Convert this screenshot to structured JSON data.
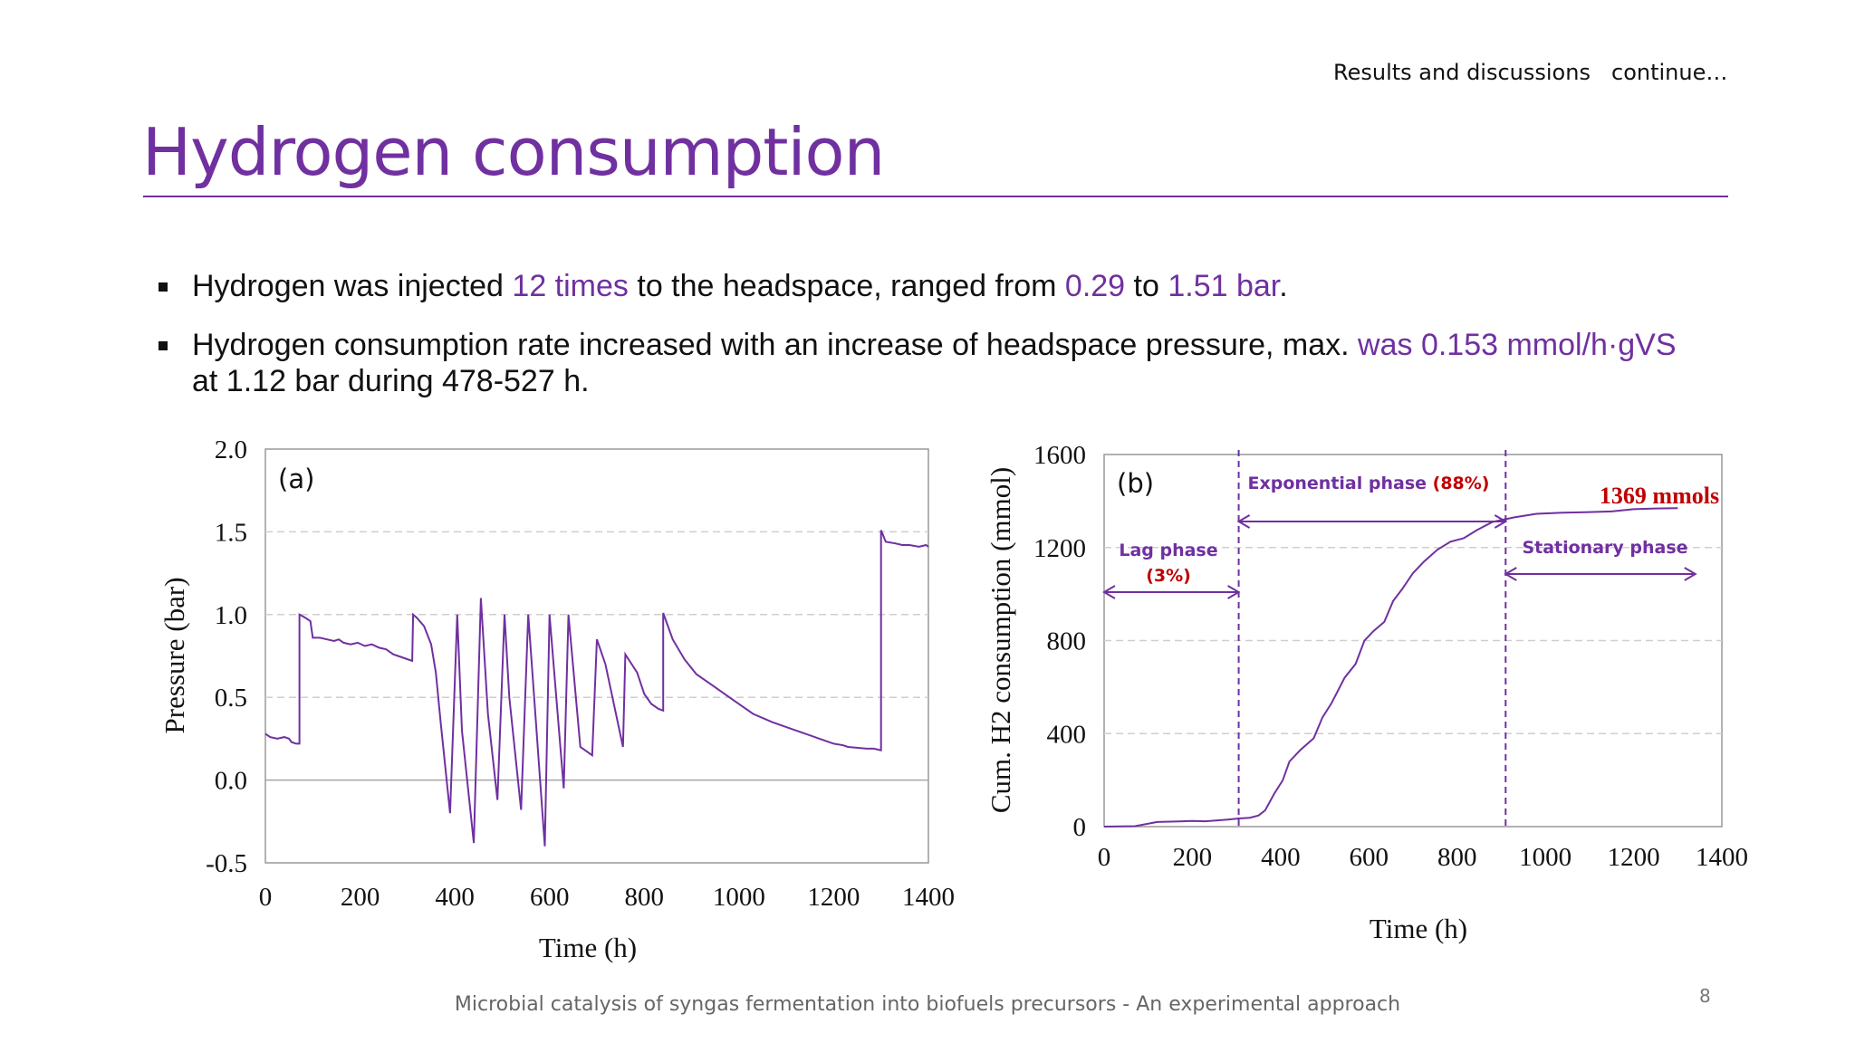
{
  "header": {
    "section": "Results and discussions",
    "continue": "continue…",
    "title": "Hydrogen consumption"
  },
  "bullets": {
    "b1": {
      "t1": "Hydrogen was injected ",
      "h1": "12 times",
      "t2": " to the headspace, ranged from ",
      "h2": "0.29",
      "t3": " to ",
      "h3": "1.51 bar",
      "t4": "."
    },
    "b2": {
      "t1": "Hydrogen consumption rate increased with an increase of headspace pressure, max. ",
      "h1": "was 0.153 mmol/h·gVS",
      "t2": " at 1.12 bar during 478-527 h."
    }
  },
  "footer": {
    "text": "Microbial catalysis of syngas fermentation into biofuels precursors - An experimental approach",
    "page": "8"
  },
  "colors": {
    "accent": "#7030a0",
    "highlight": "#c00000",
    "line": "#7030a0"
  },
  "chart_data": [
    {
      "type": "line",
      "panel": "(a)",
      "xlabel": "Time (h)",
      "ylabel": "Pressure (bar)",
      "xlim": [
        0,
        1400
      ],
      "ylim": [
        -0.5,
        2.0
      ],
      "x_ticks": [
        "0",
        "200",
        "400",
        "600",
        "800",
        "1000",
        "1200",
        "1400"
      ],
      "y_ticks": [
        "-0.5",
        "0.0",
        "0.5",
        "1.0",
        "1.5",
        "2.0"
      ],
      "series": [
        {
          "name": "Pressure",
          "points": [
            [
              0,
              0.28
            ],
            [
              10,
              0.26
            ],
            [
              25,
              0.25
            ],
            [
              40,
              0.26
            ],
            [
              50,
              0.25
            ],
            [
              55,
              0.23
            ],
            [
              65,
              0.22
            ],
            [
              72,
              0.22
            ],
            [
              72,
              1.0
            ],
            [
              85,
              0.98
            ],
            [
              95,
              0.96
            ],
            [
              100,
              0.86
            ],
            [
              115,
              0.86
            ],
            [
              130,
              0.85
            ],
            [
              145,
              0.84
            ],
            [
              155,
              0.85
            ],
            [
              165,
              0.83
            ],
            [
              180,
              0.82
            ],
            [
              195,
              0.83
            ],
            [
              210,
              0.81
            ],
            [
              225,
              0.82
            ],
            [
              240,
              0.8
            ],
            [
              255,
              0.79
            ],
            [
              270,
              0.76
            ],
            [
              280,
              0.75
            ],
            [
              310,
              0.72
            ],
            [
              312,
              1.0
            ],
            [
              320,
              0.98
            ],
            [
              335,
              0.93
            ],
            [
              350,
              0.82
            ],
            [
              360,
              0.65
            ],
            [
              370,
              0.35
            ],
            [
              390,
              -0.2
            ],
            [
              405,
              1.0
            ],
            [
              415,
              0.3
            ],
            [
              440,
              -0.38
            ],
            [
              455,
              1.1
            ],
            [
              470,
              0.4
            ],
            [
              490,
              -0.12
            ],
            [
              505,
              1.0
            ],
            [
              515,
              0.5
            ],
            [
              540,
              -0.18
            ],
            [
              555,
              1.0
            ],
            [
              590,
              -0.4
            ],
            [
              600,
              1.0
            ],
            [
              630,
              -0.05
            ],
            [
              640,
              1.0
            ],
            [
              665,
              0.2
            ],
            [
              690,
              0.15
            ],
            [
              700,
              0.85
            ],
            [
              718,
              0.7
            ],
            [
              755,
              0.2
            ],
            [
              760,
              0.76
            ],
            [
              785,
              0.65
            ],
            [
              800,
              0.52
            ],
            [
              815,
              0.46
            ],
            [
              830,
              0.43
            ],
            [
              840,
              0.42
            ],
            [
              840,
              1.01
            ],
            [
              860,
              0.85
            ],
            [
              885,
              0.73
            ],
            [
              910,
              0.64
            ],
            [
              950,
              0.56
            ],
            [
              990,
              0.48
            ],
            [
              1030,
              0.4
            ],
            [
              1070,
              0.35
            ],
            [
              1110,
              0.31
            ],
            [
              1140,
              0.28
            ],
            [
              1170,
              0.25
            ],
            [
              1200,
              0.22
            ],
            [
              1220,
              0.21
            ],
            [
              1230,
              0.2
            ],
            [
              1270,
              0.19
            ],
            [
              1285,
              0.19
            ],
            [
              1300,
              0.18
            ],
            [
              1300,
              1.51
            ],
            [
              1310,
              1.44
            ],
            [
              1330,
              1.43
            ],
            [
              1345,
              1.42
            ],
            [
              1360,
              1.42
            ],
            [
              1380,
              1.41
            ],
            [
              1395,
              1.42
            ],
            [
              1400,
              1.41
            ]
          ]
        }
      ]
    },
    {
      "type": "line",
      "panel": "(b)",
      "xlabel": "Time (h)",
      "ylabel": "Cum. H2 consumption (mmol)",
      "xlim": [
        0,
        1400
      ],
      "ylim": [
        0,
        1600
      ],
      "x_ticks": [
        "0",
        "200",
        "400",
        "600",
        "800",
        "1000",
        "1200",
        "1400"
      ],
      "y_ticks": [
        "0",
        "400",
        "800",
        "1200",
        "1600"
      ],
      "series": [
        {
          "name": "Cumulative H2",
          "points": [
            [
              0,
              0
            ],
            [
              70,
              2
            ],
            [
              120,
              20
            ],
            [
              170,
              22
            ],
            [
              200,
              24
            ],
            [
              230,
              23
            ],
            [
              280,
              30
            ],
            [
              305,
              35
            ],
            [
              330,
              38
            ],
            [
              350,
              48
            ],
            [
              365,
              70
            ],
            [
              385,
              140
            ],
            [
              405,
              200
            ],
            [
              420,
              280
            ],
            [
              445,
              330
            ],
            [
              475,
              380
            ],
            [
              495,
              470
            ],
            [
              515,
              530
            ],
            [
              545,
              640
            ],
            [
              570,
              700
            ],
            [
              590,
              800
            ],
            [
              610,
              840
            ],
            [
              635,
              880
            ],
            [
              655,
              970
            ],
            [
              675,
              1020
            ],
            [
              700,
              1090
            ],
            [
              725,
              1140
            ],
            [
              755,
              1190
            ],
            [
              785,
              1225
            ],
            [
              815,
              1240
            ],
            [
              845,
              1275
            ],
            [
              880,
              1310
            ],
            [
              930,
              1330
            ],
            [
              980,
              1345
            ],
            [
              1040,
              1350
            ],
            [
              1090,
              1352
            ],
            [
              1150,
              1355
            ],
            [
              1200,
              1365
            ],
            [
              1250,
              1368
            ],
            [
              1300,
              1369
            ]
          ]
        }
      ],
      "annotations": {
        "final_value": "1369 mmols",
        "lag": {
          "label": "Lag phase",
          "pct": "(3%)",
          "x_start": 0,
          "x_end": 305
        },
        "exp": {
          "label": "Exponential phase ",
          "pct": "(88%)",
          "x_start": 305,
          "x_end": 910
        },
        "stat": {
          "label": "Stationary phase",
          "x_start": 910,
          "x_end": 1340
        }
      }
    }
  ]
}
